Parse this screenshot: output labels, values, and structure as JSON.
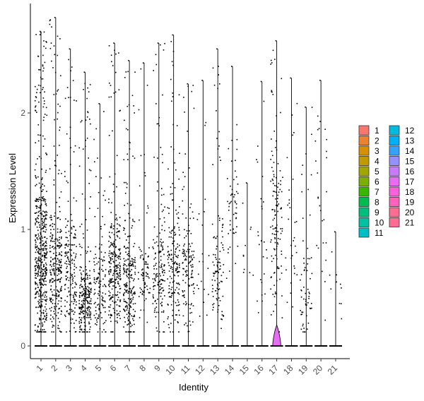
{
  "chart_data": {
    "type": "violin",
    "xlabel": "Identity",
    "ylabel": "Expression Level",
    "categories": [
      "1",
      "2",
      "3",
      "4",
      "5",
      "6",
      "7",
      "8",
      "9",
      "10",
      "11",
      "12",
      "13",
      "14",
      "15",
      "16",
      "17",
      "18",
      "19",
      "20",
      "21"
    ],
    "ylim": [
      -0.18,
      2.95
    ],
    "y_ticks": [
      0,
      1,
      2
    ],
    "points_visible": true,
    "zero_baseline_all_groups": true,
    "violin_bulge": {
      "category": "17",
      "height": 0.18,
      "width_fraction": 0.55
    },
    "groups": [
      {
        "name": "1",
        "max": 2.7,
        "cluster": [
          0.3,
          1.2
        ],
        "density": 1.0
      },
      {
        "name": "2",
        "max": 2.82,
        "cluster": [
          0.3,
          1.0
        ],
        "density": 0.55
      },
      {
        "name": "3",
        "max": 2.55,
        "cluster": [
          0.3,
          1.0
        ],
        "density": 0.35
      },
      {
        "name": "4",
        "max": 2.35,
        "cluster": [
          0.2,
          0.6
        ],
        "density": 0.5
      },
      {
        "name": "5",
        "max": 2.08,
        "cluster": [
          0.2,
          0.8
        ],
        "density": 0.25
      },
      {
        "name": "6",
        "max": 2.6,
        "cluster": [
          0.3,
          0.9
        ],
        "density": 0.5
      },
      {
        "name": "7",
        "max": 2.45,
        "cluster": [
          0.2,
          0.9
        ],
        "density": 0.45
      },
      {
        "name": "8",
        "max": 2.43,
        "cluster": [
          0.3,
          0.8
        ],
        "density": 0.15
      },
      {
        "name": "9",
        "max": 2.6,
        "cluster": [
          0.3,
          0.9
        ],
        "density": 0.3
      },
      {
        "name": "10",
        "max": 2.67,
        "cluster": [
          0.3,
          1.0
        ],
        "density": 0.35
      },
      {
        "name": "11",
        "max": 2.25,
        "cluster": [
          0.3,
          1.0
        ],
        "density": 0.25
      },
      {
        "name": "12",
        "max": 2.28,
        "cluster": [
          0.4,
          1.0
        ],
        "density": 0.04
      },
      {
        "name": "13",
        "max": 2.55,
        "cluster": [
          0.3,
          0.9
        ],
        "density": 0.2
      },
      {
        "name": "14",
        "max": 2.4,
        "cluster": [
          0.8,
          1.5
        ],
        "density": 0.1
      },
      {
        "name": "15",
        "max": 1.4,
        "cluster": [
          0.5,
          1.0
        ],
        "density": 0.02
      },
      {
        "name": "16",
        "max": 2.27,
        "cluster": [
          0.4,
          1.3
        ],
        "density": 0.05
      },
      {
        "name": "17",
        "max": 2.62,
        "cluster": [
          0.5,
          1.5
        ],
        "density": 0.25
      },
      {
        "name": "18",
        "max": 2.3,
        "cluster": [
          0.5,
          1.3
        ],
        "density": 0.06
      },
      {
        "name": "19",
        "max": 2.05,
        "cluster": [
          0.2,
          0.7
        ],
        "density": 0.12
      },
      {
        "name": "20",
        "max": 2.28,
        "cluster": [
          0.6,
          1.8
        ],
        "density": 0.05
      },
      {
        "name": "21",
        "max": 0.98,
        "cluster": [
          0.2,
          0.8
        ],
        "density": 0.02
      }
    ],
    "legend": {
      "placement": "right",
      "entries": [
        {
          "label": "1",
          "color": "#F8766D"
        },
        {
          "label": "2",
          "color": "#EA8331"
        },
        {
          "label": "3",
          "color": "#D89000"
        },
        {
          "label": "4",
          "color": "#C09B00"
        },
        {
          "label": "5",
          "color": "#A3A500"
        },
        {
          "label": "6",
          "color": "#7CAE00"
        },
        {
          "label": "7",
          "color": "#39B600"
        },
        {
          "label": "8",
          "color": "#00BB4E"
        },
        {
          "label": "9",
          "color": "#00BF7D"
        },
        {
          "label": "10",
          "color": "#00C1A3"
        },
        {
          "label": "11",
          "color": "#00BFC4"
        },
        {
          "label": "12",
          "color": "#00BAE0"
        },
        {
          "label": "13",
          "color": "#00B0F6"
        },
        {
          "label": "14",
          "color": "#35A2FF"
        },
        {
          "label": "15",
          "color": "#9590FF"
        },
        {
          "label": "16",
          "color": "#C77CFF"
        },
        {
          "label": "17",
          "color": "#E76BF3"
        },
        {
          "label": "18",
          "color": "#FA62DB"
        },
        {
          "label": "19",
          "color": "#FF62BC"
        },
        {
          "label": "20",
          "color": "#FF6C91"
        },
        {
          "label": "21",
          "color": "#FF6C91"
        }
      ]
    }
  }
}
